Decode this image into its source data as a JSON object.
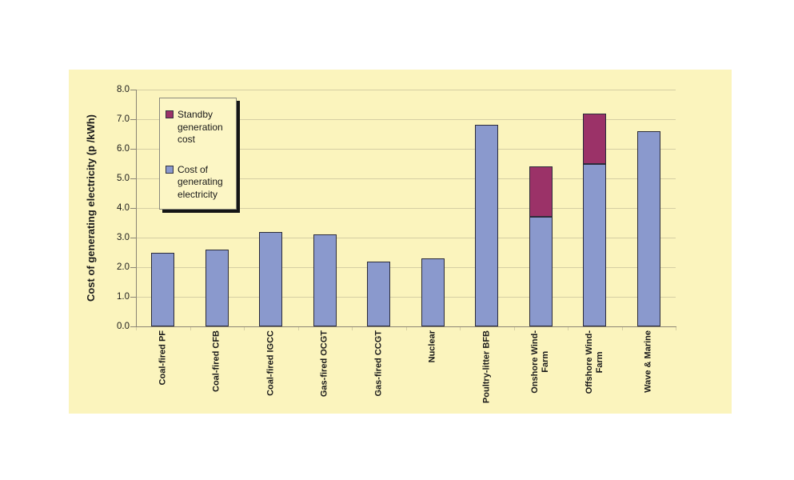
{
  "page": {
    "background": "#FFFFFF"
  },
  "chart": {
    "panel_background": "#FBF4BD",
    "legend_background": "#FCF6C5",
    "gridline_color": "#D5CEA3",
    "axis_color": "#8B8573",
    "bar_border_color": "#2C2C3A",
    "text_color": "#1A1A1A"
  },
  "chart_data": {
    "type": "bar",
    "stacked": true,
    "title": "",
    "xlabel": "",
    "ylabel": "Cost of generating electricity (p /kWh)",
    "ylim": [
      0,
      8
    ],
    "ytick_step": 1,
    "ytick_labels": [
      "0.0",
      "1.0",
      "2.0",
      "3.0",
      "4.0",
      "5.0",
      "6.0",
      "7.0",
      "8.0"
    ],
    "grid": true,
    "legend_position": "upper-left-inside",
    "categories": [
      "Coal-fired PF",
      "Coal-fired CFB",
      "Coal-fired IGCC",
      "Gas-fired OCGT",
      "Gas-fired CCGT",
      "Nuclear",
      "Poultry-litter BFB",
      "Onshore Wind-\nFarm",
      "Offshore Wind-\nFarm",
      "Wave & Marine"
    ],
    "series": [
      {
        "name": "Cost of generating electricity",
        "color": "#8A99CD",
        "values": [
          2.5,
          2.6,
          3.2,
          3.1,
          2.2,
          2.3,
          6.8,
          3.7,
          5.5,
          6.6
        ]
      },
      {
        "name": "Standby generation cost",
        "color": "#9B3268",
        "values": [
          0,
          0,
          0,
          0,
          0,
          0,
          0,
          1.7,
          1.7,
          0
        ]
      }
    ]
  },
  "legend": {
    "items": [
      {
        "label": "Standby\ngeneration\ncost",
        "color": "#9B3268"
      },
      {
        "label": "Cost of\ngenerating\nelectricity",
        "color": "#8A99CD"
      }
    ]
  }
}
